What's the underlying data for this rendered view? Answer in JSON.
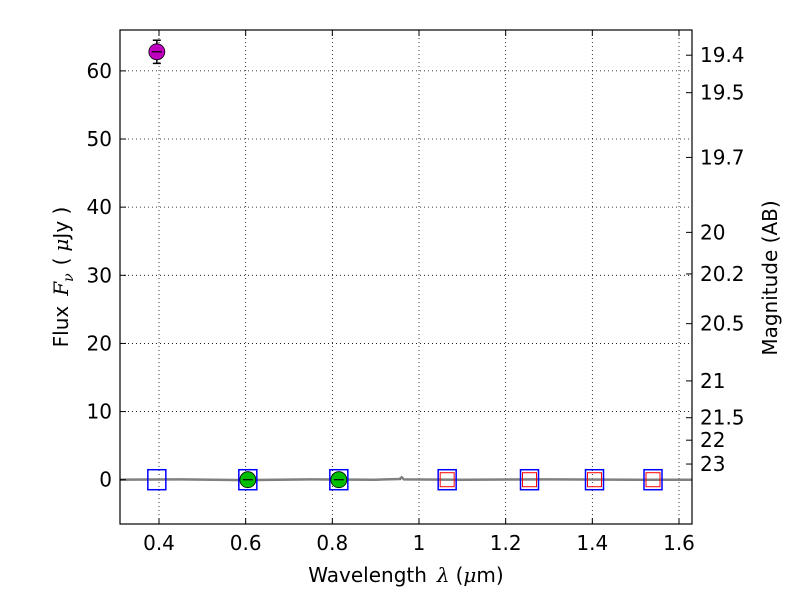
{
  "chart_data": {
    "type": "scatter",
    "xlabel_prefix": "Wavelength",
    "xlabel_symbol": "λ",
    "xlabel_unit_open": "(",
    "xlabel_unit_mu": "μ",
    "xlabel_unit_rest": "m)",
    "ylabel_prefix": "Flux",
    "ylabel_symbol_F": "F",
    "ylabel_symbol_sub": "ν",
    "ylabel_unit_open": "(",
    "ylabel_unit_mu": "μ",
    "ylabel_unit_rest": "Jy )",
    "y2label": "Magnitude (AB)",
    "xlim": [
      0.31,
      1.63
    ],
    "ylim": [
      -6.5,
      66
    ],
    "grid": true,
    "x_ticks": [
      0.4,
      0.6,
      0.8,
      1.0,
      1.2,
      1.4,
      1.6
    ],
    "x_tick_labels": [
      "0.4",
      "0.6",
      "0.8",
      "1",
      "1.2",
      "1.4",
      "1.6"
    ],
    "y_ticks": [
      0,
      10,
      20,
      30,
      40,
      50,
      60
    ],
    "y_tick_labels": [
      "0",
      "10",
      "20",
      "30",
      "40",
      "50",
      "60"
    ],
    "y2_ticks": [
      {
        "label": "19.4",
        "flux": 62.3
      },
      {
        "label": "19.5",
        "flux": 56.8
      },
      {
        "label": "19.7",
        "flux": 47.3
      },
      {
        "label": "20",
        "flux": 36.3
      },
      {
        "label": "20.2",
        "flux": 30.2
      },
      {
        "label": "20.5",
        "flux": 22.9
      },
      {
        "label": "21",
        "flux": 14.5
      },
      {
        "label": "21.5",
        "flux": 9.1
      },
      {
        "label": "22",
        "flux": 5.8
      },
      {
        "label": "23",
        "flux": 2.3
      }
    ],
    "series": [
      {
        "name": "photometry-magenta",
        "marker": "circle",
        "color": "#bf00bf",
        "points": [
          {
            "x": 0.395,
            "y": 62.8,
            "yerr": 1.7
          }
        ]
      },
      {
        "name": "photometry-green",
        "marker": "circle",
        "color": "#00bf00",
        "points": [
          {
            "x": 0.605,
            "y": 0,
            "yerr": 0.4
          },
          {
            "x": 0.815,
            "y": 0,
            "yerr": 0.4
          }
        ]
      },
      {
        "name": "upper-limits-blue",
        "marker": "square",
        "color": "#0000ff",
        "points": [
          {
            "x": 0.395,
            "y": 0
          },
          {
            "x": 0.605,
            "y": 0
          },
          {
            "x": 0.815,
            "y": 0
          },
          {
            "x": 1.065,
            "y": 0
          },
          {
            "x": 1.255,
            "y": 0
          },
          {
            "x": 1.405,
            "y": 0
          },
          {
            "x": 1.54,
            "y": 0
          }
        ]
      },
      {
        "name": "model-red",
        "marker": "square-small",
        "color": "#ff0000",
        "points": [
          {
            "x": 1.065,
            "y": 0
          },
          {
            "x": 1.255,
            "y": 0
          },
          {
            "x": 1.405,
            "y": 0
          },
          {
            "x": 1.54,
            "y": 0
          }
        ]
      }
    ],
    "spectrum": {
      "name": "spectrum",
      "color": "#808080",
      "x": [
        0.31,
        0.45,
        0.6,
        0.75,
        0.9,
        0.955,
        0.96,
        0.965,
        1.1,
        1.3,
        1.5,
        1.63
      ],
      "y": [
        0,
        0.05,
        -0.05,
        0.05,
        0,
        0.1,
        0.35,
        0.05,
        0,
        0.05,
        0,
        0
      ]
    }
  }
}
